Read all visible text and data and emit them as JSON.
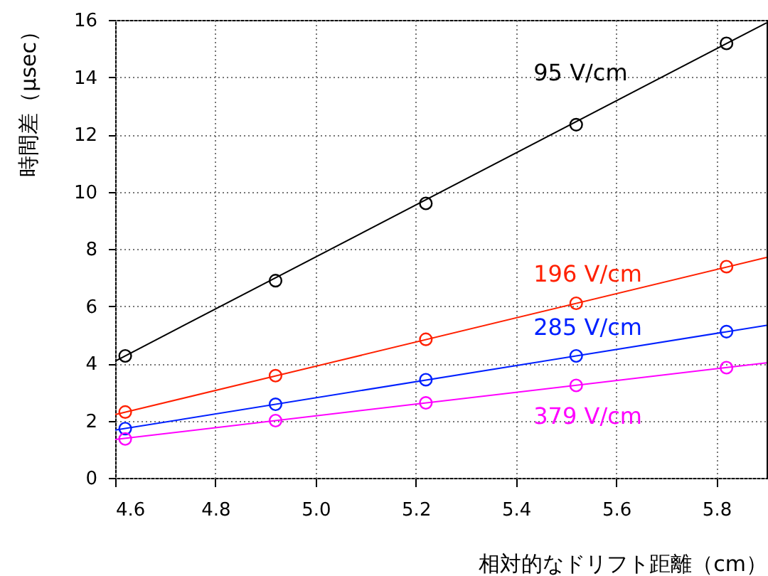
{
  "chart_data": {
    "type": "scatter",
    "xlabel": "相対的なドリフト距離（cm）",
    "ylabel": "時間差（μsec）",
    "xlim": [
      4.6,
      5.9
    ],
    "xticks": [
      4.6,
      4.8,
      {
        "value": 5,
        "label": "5.0"
      },
      5.2,
      5.4,
      5.6,
      5.8
    ],
    "ylim": [
      0,
      16
    ],
    "yticks": [
      0,
      2,
      4,
      6,
      8,
      10,
      12,
      14,
      16
    ],
    "grid": true,
    "series": [
      {
        "name": "95 V/cm",
        "color": "#000000",
        "marker": "circle",
        "x": [
          4.62,
          4.92,
          5.22,
          5.52,
          5.82
        ],
        "values": [
          4.26,
          6.89,
          9.59,
          12.34,
          15.18
        ]
      },
      {
        "name": "196 V/cm",
        "color": "#ff2000",
        "marker": "circle",
        "x": [
          4.62,
          4.92,
          5.22,
          5.52,
          5.82
        ],
        "values": [
          2.3,
          3.57,
          4.84,
          6.1,
          7.38
        ]
      },
      {
        "name": "285 V/cm",
        "color": "#0020ff",
        "marker": "circle",
        "x": [
          4.62,
          4.92,
          5.22,
          5.52,
          5.82
        ],
        "values": [
          1.72,
          2.57,
          3.43,
          4.26,
          5.11
        ]
      },
      {
        "name": "379 V/cm",
        "color": "#ff00ff",
        "marker": "circle",
        "x": [
          4.62,
          4.92,
          5.22,
          5.52,
          5.82
        ],
        "values": [
          1.36,
          2.0,
          2.62,
          3.23,
          3.85
        ]
      },
      {
        "type": "line",
        "color": "#000000",
        "marker": "none",
        "x": [
          4.6,
          5.9
        ],
        "values": [
          4.08,
          15.9
        ]
      },
      {
        "type": "line",
        "color": "#ff2000",
        "marker": "none",
        "x": [
          4.6,
          5.9
        ],
        "values": [
          2.21,
          7.7
        ]
      },
      {
        "type": "line",
        "color": "#0020ff",
        "marker": "none",
        "x": [
          4.6,
          5.9
        ],
        "values": [
          1.67,
          5.33
        ]
      },
      {
        "type": "line",
        "color": "#ff00ff",
        "marker": "none",
        "x": [
          4.6,
          5.9
        ],
        "values": [
          1.34,
          4.02
        ]
      }
    ]
  }
}
